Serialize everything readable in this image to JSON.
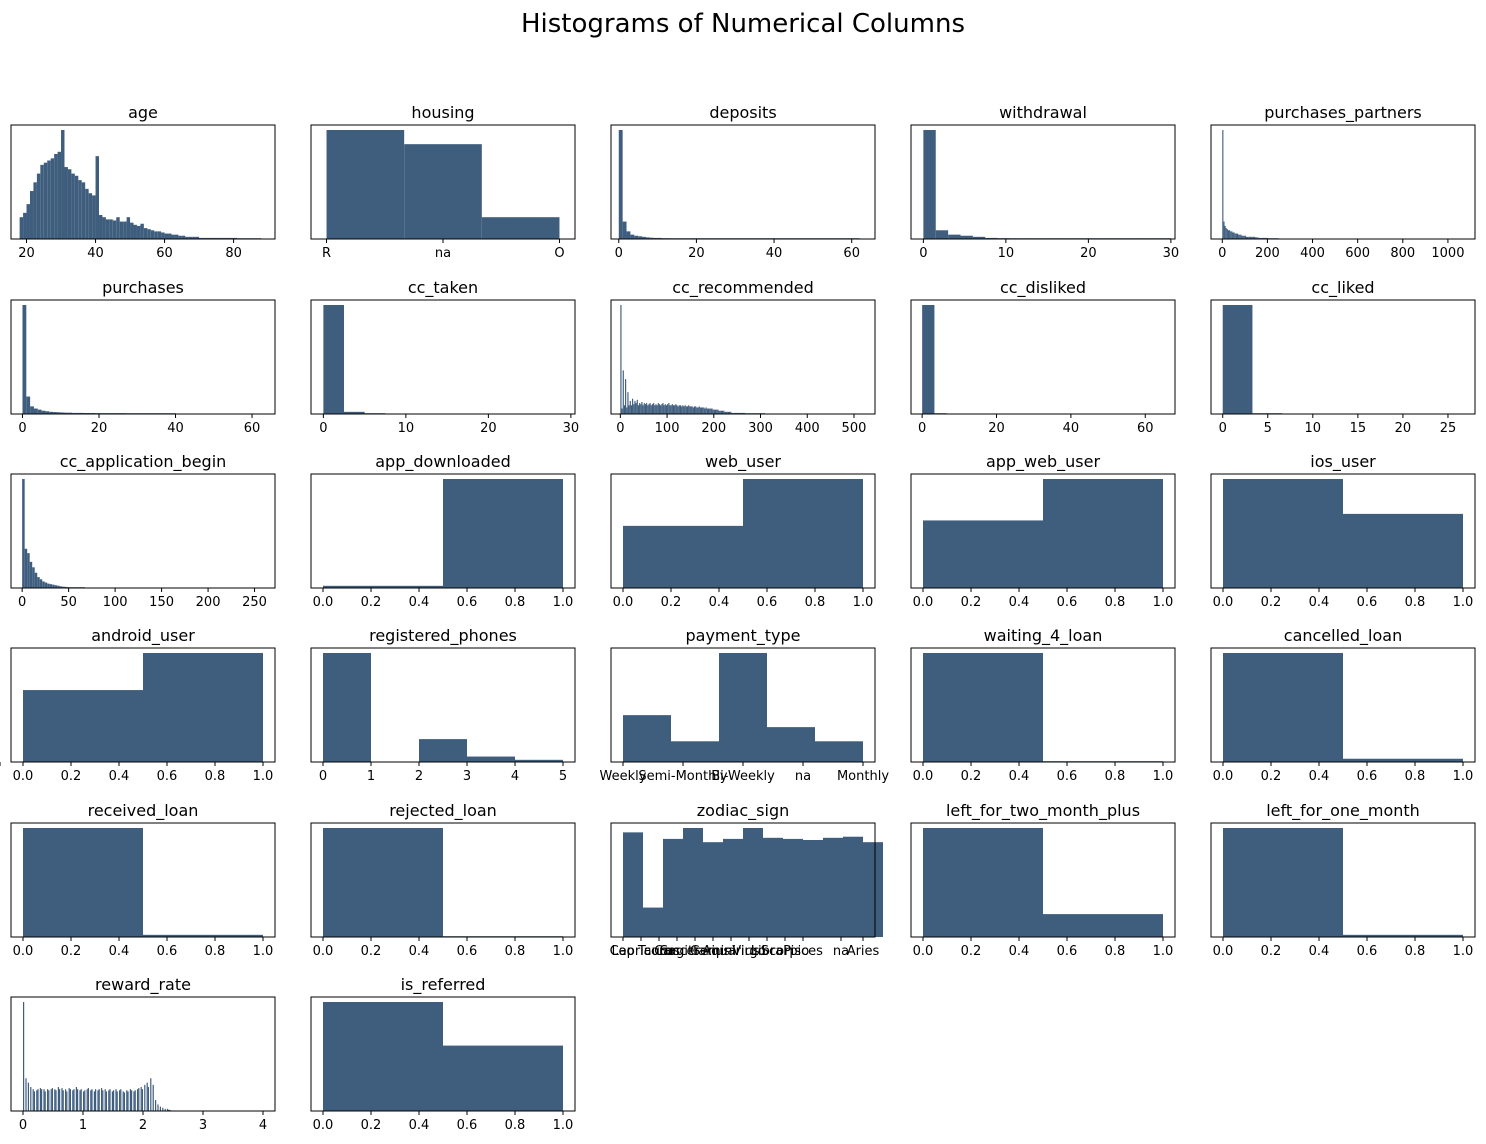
{
  "figure_title": "Histograms of Numerical Columns",
  "bar_color": "#3f5e7e",
  "chart_data": [
    {
      "type": "bar",
      "title": "age",
      "xlim": [
        15.5,
        92
      ],
      "xticks": [
        20,
        40,
        60,
        80
      ],
      "xtick_labels": [
        "20",
        "40",
        "60",
        "80"
      ],
      "bin_start": 18,
      "bin_width": 1.0,
      "values": [
        0.2,
        0.24,
        0.32,
        0.44,
        0.52,
        0.6,
        0.68,
        0.7,
        0.72,
        0.74,
        0.78,
        0.8,
        1.0,
        0.66,
        0.64,
        0.6,
        0.58,
        0.54,
        0.52,
        0.46,
        0.42,
        0.4,
        0.76,
        0.22,
        0.2,
        0.18,
        0.18,
        0.17,
        0.2,
        0.16,
        0.16,
        0.2,
        0.15,
        0.13,
        0.12,
        0.14,
        0.1,
        0.09,
        0.08,
        0.07,
        0.07,
        0.06,
        0.05,
        0.05,
        0.04,
        0.04,
        0.03,
        0.03,
        0.02,
        0.02,
        0.02,
        0.02,
        0.01,
        0.01,
        0.01,
        0.01,
        0.01,
        0.01,
        0.01,
        0.01,
        0.01,
        0.01,
        0.01,
        0.005,
        0.005,
        0.005,
        0.005,
        0.005,
        0.005,
        0.005
      ]
    },
    {
      "type": "bar",
      "title": "housing",
      "xlim": [
        -0.2,
        3.2
      ],
      "xticks": [
        0,
        1.5,
        3
      ],
      "xtick_labels": [
        "R",
        "na",
        "O"
      ],
      "bin_start": 0,
      "bin_width": 1.0,
      "values": [
        1.0,
        0.87,
        0.2
      ]
    },
    {
      "type": "bar",
      "title": "deposits",
      "xlim": [
        -2,
        66
      ],
      "xticks": [
        0,
        20,
        40,
        60
      ],
      "xtick_labels": [
        "0",
        "20",
        "40",
        "60"
      ],
      "bin_start": 0,
      "bin_width": 1.0,
      "values": [
        1.0,
        0.16,
        0.07,
        0.04,
        0.03,
        0.025,
        0.02,
        0.015,
        0.012,
        0.01,
        0.01,
        0.008,
        0.008,
        0.007,
        0.006,
        0.006,
        0.005,
        0.005,
        0.005,
        0.004,
        0.004,
        0.004,
        0.004,
        0.004,
        0.004,
        0.004,
        0.004,
        0.004,
        0.004,
        0.004,
        0.004,
        0.004,
        0.004,
        0.004,
        0.004,
        0.004,
        0.004,
        0.004,
        0.004,
        0.004,
        0.004,
        0.004,
        0.004,
        0.004,
        0.004,
        0.004,
        0.004,
        0.004,
        0.004,
        0.004,
        0.004,
        0.004,
        0.004,
        0.004,
        0.004,
        0.004,
        0.004,
        0.004,
        0.004,
        0.004,
        0.004,
        0.004
      ]
    },
    {
      "type": "bar",
      "title": "withdrawal",
      "xlim": [
        -1.5,
        30.5
      ],
      "xticks": [
        0,
        10,
        20,
        30
      ],
      "xtick_labels": [
        "0",
        "10",
        "20",
        "30"
      ],
      "bin_start": 0,
      "bin_width": 1.5,
      "values": [
        1.0,
        0.08,
        0.04,
        0.03,
        0.02,
        0.01,
        0.008,
        0.005,
        0.004,
        0.003,
        0.003,
        0.002,
        0.002,
        0.002,
        0.002,
        0.001,
        0.001,
        0.001,
        0.001,
        0.001
      ]
    },
    {
      "type": "bar",
      "title": "purchases_partners",
      "xlim": [
        -50,
        1120
      ],
      "xticks": [
        0,
        200,
        400,
        600,
        800,
        1000
      ],
      "xtick_labels": [
        "0",
        "200",
        "400",
        "600",
        "800",
        "1000"
      ],
      "bin_start": 0,
      "bin_width": 5,
      "values": [
        1.0,
        0.16,
        0.12,
        0.1,
        0.09,
        0.08,
        0.08,
        0.07,
        0.07,
        0.06,
        0.06,
        0.05,
        0.05,
        0.05,
        0.04,
        0.04,
        0.04,
        0.03,
        0.03,
        0.03,
        0.03,
        0.02,
        0.02,
        0.02,
        0.02,
        0.02,
        0.02,
        0.02,
        0.02,
        0.015,
        0.015,
        0.015,
        0.01,
        0.01,
        0.01,
        0.01,
        0.01,
        0.01,
        0.01,
        0.01,
        0.008,
        0.008,
        0.006,
        0.006,
        0.005,
        0.005,
        0.004,
        0.004,
        0.004,
        0.003
      ]
    },
    {
      "type": "bar",
      "title": "purchases",
      "xlim": [
        -3,
        66
      ],
      "xticks": [
        0,
        20,
        40,
        60
      ],
      "xtick_labels": [
        "0",
        "20",
        "40",
        "60"
      ],
      "bin_start": 0,
      "bin_width": 1.0,
      "values": [
        1.0,
        0.16,
        0.07,
        0.05,
        0.04,
        0.03,
        0.025,
        0.02,
        0.018,
        0.016,
        0.014,
        0.012,
        0.012,
        0.01,
        0.01,
        0.01,
        0.009,
        0.009,
        0.009,
        0.008,
        0.008,
        0.008,
        0.008,
        0.008,
        0.008,
        0.008,
        0.008,
        0.007,
        0.007,
        0.007,
        0.006,
        0.005,
        0.004,
        0.004,
        0.004,
        0.003,
        0.003,
        0.003,
        0.003,
        0.003
      ]
    },
    {
      "type": "bar",
      "title": "cc_taken",
      "xlim": [
        -1.5,
        30.5
      ],
      "xticks": [
        0,
        10,
        20,
        30
      ],
      "xtick_labels": [
        "0",
        "10",
        "20",
        "30"
      ],
      "bin_start": 0,
      "bin_width": 2.5,
      "values": [
        1.0,
        0.02,
        0.003
      ]
    },
    {
      "type": "bar",
      "title": "cc_recommended",
      "xlim": [
        -20,
        545
      ],
      "xticks": [
        0,
        100,
        200,
        300,
        400,
        500
      ],
      "xtick_labels": [
        "0",
        "100",
        "200",
        "300",
        "400",
        "500"
      ],
      "bin_start": 0,
      "bin_width": 2.5,
      "values": [
        1.0,
        0.05,
        0.4,
        0.08,
        0.32,
        0.06,
        0.2,
        0.08,
        0.12,
        0.08,
        0.14,
        0.09,
        0.12,
        0.1,
        0.13,
        0.08,
        0.1,
        0.09,
        0.11,
        0.08,
        0.1,
        0.09,
        0.1,
        0.08,
        0.09,
        0.1,
        0.08,
        0.09,
        0.1,
        0.08,
        0.09,
        0.08,
        0.1,
        0.09,
        0.08,
        0.09,
        0.1,
        0.08,
        0.09,
        0.08,
        0.09,
        0.1,
        0.08,
        0.08,
        0.09,
        0.08,
        0.08,
        0.09,
        0.08,
        0.07,
        0.08,
        0.08,
        0.07,
        0.08,
        0.07,
        0.08,
        0.07,
        0.07,
        0.08,
        0.07,
        0.07,
        0.07,
        0.06,
        0.07,
        0.07,
        0.06,
        0.06,
        0.07,
        0.06,
        0.06,
        0.06,
        0.06,
        0.05,
        0.06,
        0.05,
        0.05,
        0.05,
        0.05,
        0.05,
        0.04,
        0.04,
        0.04,
        0.04,
        0.04,
        0.03,
        0.03,
        0.03,
        0.03,
        0.03,
        0.02,
        0.02,
        0.02,
        0.02,
        0.02,
        0.02,
        0.01,
        0.01,
        0.01,
        0.01,
        0.01,
        0.01,
        0.01,
        0.01,
        0.01,
        0.01,
        0.01,
        0.01,
        0.005,
        0.005,
        0.005,
        0.005,
        0.005,
        0.005,
        0.005,
        0.005,
        0.005,
        0.005,
        0.005,
        0.005,
        0.005,
        0.005,
        0.005,
        0.005,
        0.005
      ]
    },
    {
      "type": "bar",
      "title": "cc_disliked",
      "xlim": [
        -3,
        68
      ],
      "xticks": [
        0,
        20,
        40,
        60
      ],
      "xtick_labels": [
        "0",
        "20",
        "40",
        "60"
      ],
      "bin_start": 0,
      "bin_width": 3.3,
      "values": [
        1.0,
        0.005
      ]
    },
    {
      "type": "bar",
      "title": "cc_liked",
      "xlim": [
        -1.3,
        28
      ],
      "xticks": [
        0,
        5,
        10,
        15,
        20,
        25
      ],
      "xtick_labels": [
        "0",
        "5",
        "10",
        "15",
        "20",
        "25"
      ],
      "bin_start": 0,
      "bin_width": 3.3,
      "values": [
        1.0,
        0.003
      ]
    },
    {
      "type": "bar",
      "title": "cc_application_begin",
      "xlim": [
        -12,
        272
      ],
      "xticks": [
        0,
        50,
        100,
        150,
        200,
        250
      ],
      "xtick_labels": [
        "0",
        "50",
        "100",
        "150",
        "200",
        "250"
      ],
      "bin_start": 0,
      "bin_width": 2.7,
      "values": [
        1.0,
        0.36,
        0.32,
        0.24,
        0.19,
        0.14,
        0.1,
        0.08,
        0.06,
        0.05,
        0.04,
        0.035,
        0.03,
        0.025,
        0.02,
        0.015,
        0.012,
        0.01,
        0.008,
        0.006,
        0.005,
        0.004,
        0.003,
        0.003,
        0.002
      ]
    },
    {
      "type": "bar",
      "title": "app_downloaded",
      "xlim": [
        -0.05,
        1.05
      ],
      "xticks": [
        0,
        0.2,
        0.4,
        0.6,
        0.8,
        1.0
      ],
      "xtick_labels": [
        "0.0",
        "0.2",
        "0.4",
        "0.6",
        "0.8",
        "1.0"
      ],
      "bin_start": 0,
      "bin_width": 0.5,
      "values": [
        0.02,
        1.0
      ]
    },
    {
      "type": "bar",
      "title": "web_user",
      "xlim": [
        -0.05,
        1.05
      ],
      "xticks": [
        0,
        0.2,
        0.4,
        0.6,
        0.8,
        1.0
      ],
      "xtick_labels": [
        "0.0",
        "0.2",
        "0.4",
        "0.6",
        "0.8",
        "1.0"
      ],
      "bin_start": 0,
      "bin_width": 0.5,
      "values": [
        0.57,
        1.0
      ]
    },
    {
      "type": "bar",
      "title": "app_web_user",
      "xlim": [
        -0.05,
        1.05
      ],
      "xticks": [
        0,
        0.2,
        0.4,
        0.6,
        0.8,
        1.0
      ],
      "xtick_labels": [
        "0.0",
        "0.2",
        "0.4",
        "0.6",
        "0.8",
        "1.0"
      ],
      "bin_start": 0,
      "bin_width": 0.5,
      "values": [
        0.62,
        1.0
      ]
    },
    {
      "type": "bar",
      "title": "ios_user",
      "xlim": [
        -0.05,
        1.05
      ],
      "xticks": [
        0,
        0.2,
        0.4,
        0.6,
        0.8,
        1.0
      ],
      "xtick_labels": [
        "0.0",
        "0.2",
        "0.4",
        "0.6",
        "0.8",
        "1.0"
      ],
      "bin_start": 0,
      "bin_width": 0.5,
      "values": [
        1.0,
        0.68
      ]
    },
    {
      "type": "bar",
      "title": "android_user",
      "xlim": [
        -0.05,
        1.05
      ],
      "xticks": [
        0,
        0.2,
        0.4,
        0.6,
        0.8,
        1.0
      ],
      "xtick_labels": [
        "0.0",
        "0.2",
        "0.4",
        "0.6",
        "0.8",
        "1.0"
      ],
      "bin_start": 0,
      "bin_width": 0.5,
      "values": [
        0.66,
        1.0
      ]
    },
    {
      "type": "bar",
      "title": "registered_phones",
      "xlim": [
        -0.25,
        5.25
      ],
      "xticks": [
        0,
        1,
        2,
        3,
        4,
        5
      ],
      "xtick_labels": [
        "0",
        "1",
        "2",
        "3",
        "4",
        "5"
      ],
      "bin_start": 0,
      "bin_width": 1.0,
      "values": [
        1.0,
        0.0,
        0.21,
        0.05,
        0.02
      ]
    },
    {
      "type": "bar",
      "title": "payment_type",
      "xlim": [
        -0.25,
        5.25
      ],
      "xticks": [
        0,
        1,
        2,
        3,
        4,
        5
      ],
      "xtick_labels": [
        "Weekly",
        "Semi-Monthly",
        "Bi-Weekly",
        "na",
        "Monthly"
      ],
      "xtick_positions": [
        0,
        1.25,
        2.5,
        3.75,
        5
      ],
      "bin_start": 0,
      "bin_width": 1.0,
      "values": [
        0.43,
        0.19,
        1.0,
        0.32,
        0.19
      ]
    },
    {
      "type": "bar",
      "title": "waiting_4_loan",
      "xlim": [
        -0.05,
        1.05
      ],
      "xticks": [
        0,
        0.2,
        0.4,
        0.6,
        0.8,
        1.0
      ],
      "xtick_labels": [
        "0.0",
        "0.2",
        "0.4",
        "0.6",
        "0.8",
        "1.0"
      ],
      "bin_start": 0,
      "bin_width": 0.5,
      "values": [
        1.0,
        0.002
      ]
    },
    {
      "type": "bar",
      "title": "cancelled_loan",
      "xlim": [
        -0.05,
        1.05
      ],
      "xticks": [
        0,
        0.2,
        0.4,
        0.6,
        0.8,
        1.0
      ],
      "xtick_labels": [
        "0.0",
        "0.2",
        "0.4",
        "0.6",
        "0.8",
        "1.0"
      ],
      "bin_start": 0,
      "bin_width": 0.5,
      "values": [
        1.0,
        0.03
      ]
    },
    {
      "type": "bar",
      "title": "received_loan",
      "xlim": [
        -0.05,
        1.05
      ],
      "xticks": [
        0,
        0.2,
        0.4,
        0.6,
        0.8,
        1.0
      ],
      "xtick_labels": [
        "0.0",
        "0.2",
        "0.4",
        "0.6",
        "0.8",
        "1.0"
      ],
      "bin_start": 0,
      "bin_width": 0.5,
      "values": [
        1.0,
        0.02
      ]
    },
    {
      "type": "bar",
      "title": "rejected_loan",
      "xlim": [
        -0.05,
        1.05
      ],
      "xticks": [
        0,
        0.2,
        0.4,
        0.6,
        0.8,
        1.0
      ],
      "xtick_labels": [
        "0.0",
        "0.2",
        "0.4",
        "0.6",
        "0.8",
        "1.0"
      ],
      "bin_start": 0,
      "bin_width": 0.5,
      "values": [
        1.0,
        0.005
      ]
    },
    {
      "type": "bar",
      "title": "zodiac_sign",
      "xlim": [
        -0.6,
        12.6
      ],
      "xticks": [
        0,
        1,
        2,
        3,
        4,
        5,
        6,
        7,
        8,
        9,
        10,
        11,
        12
      ],
      "xtick_labels": [
        "Leo",
        "Capricorn",
        "Taurus",
        "Cancer",
        "Sagittarius",
        "Gemini",
        "Aquarius",
        "Virgo",
        "Libra",
        "Scorpio",
        "Pisces",
        "na",
        "Aries"
      ],
      "xtick_positions": [
        0,
        0.9,
        1.8,
        2.7,
        3.6,
        4.5,
        5.4,
        6.3,
        7.2,
        8.1,
        9.0,
        10.9,
        12
      ],
      "bin_start": 0,
      "bin_width": 1.0,
      "values": [
        0.96,
        0.27,
        0.9,
        1.0,
        0.87,
        0.9,
        1.0,
        0.91,
        0.9,
        0.89,
        0.91,
        0.92,
        0.87
      ]
    },
    {
      "type": "bar",
      "title": "left_for_two_month_plus",
      "xlim": [
        -0.05,
        1.05
      ],
      "xticks": [
        0,
        0.2,
        0.4,
        0.6,
        0.8,
        1.0
      ],
      "xtick_labels": [
        "0.0",
        "0.2",
        "0.4",
        "0.6",
        "0.8",
        "1.0"
      ],
      "bin_start": 0,
      "bin_width": 0.5,
      "values": [
        1.0,
        0.21
      ]
    },
    {
      "type": "bar",
      "title": "left_for_one_month",
      "xlim": [
        -0.05,
        1.05
      ],
      "xticks": [
        0,
        0.2,
        0.4,
        0.6,
        0.8,
        1.0
      ],
      "xtick_labels": [
        "0.0",
        "0.2",
        "0.4",
        "0.6",
        "0.8",
        "1.0"
      ],
      "bin_start": 0,
      "bin_width": 0.5,
      "values": [
        1.0,
        0.02
      ]
    },
    {
      "type": "bar",
      "title": "reward_rate",
      "xlim": [
        -0.2,
        4.2
      ],
      "xticks": [
        0,
        1,
        2,
        3,
        4
      ],
      "xtick_labels": [
        "0",
        "1",
        "2",
        "3",
        "4"
      ],
      "bin_start": 0,
      "bin_width": 0.02,
      "values": [
        1.0,
        0.0,
        0.3,
        0.0,
        0.26,
        0.0,
        0.22,
        0.0,
        0.2,
        0.18,
        0.0,
        0.19,
        0.2,
        0.0,
        0.21,
        0.2,
        0.0,
        0.2,
        0.18,
        0.0,
        0.2,
        0.19,
        0.0,
        0.2,
        0.21,
        0.0,
        0.2,
        0.19,
        0.0,
        0.22,
        0.2,
        0.0,
        0.21,
        0.19,
        0.0,
        0.2,
        0.18,
        0.0,
        0.21,
        0.2,
        0.0,
        0.19,
        0.2,
        0.0,
        0.22,
        0.2,
        0.0,
        0.19,
        0.2,
        0.0,
        0.18,
        0.19,
        0.0,
        0.2,
        0.21,
        0.0,
        0.19,
        0.2,
        0.0,
        0.18,
        0.2,
        0.0,
        0.19,
        0.2,
        0.0,
        0.21,
        0.19,
        0.0,
        0.2,
        0.18,
        0.0,
        0.19,
        0.2,
        0.0,
        0.18,
        0.19,
        0.0,
        0.2,
        0.18,
        0.0,
        0.19,
        0.2,
        0.0,
        0.18,
        0.17,
        0.0,
        0.19,
        0.18,
        0.0,
        0.2,
        0.19,
        0.0,
        0.18,
        0.19,
        0.0,
        0.2,
        0.21,
        0.0,
        0.22,
        0.2,
        0.0,
        0.24,
        0.0,
        0.26,
        0.22,
        0.0,
        0.3,
        0.0,
        0.24,
        0.0,
        0.1,
        0.0,
        0.06,
        0.0,
        0.04,
        0.0,
        0.03,
        0.0,
        0.02,
        0.0,
        0.02,
        0.01,
        0.01
      ]
    },
    {
      "type": "bar",
      "title": "is_referred",
      "xlim": [
        -0.05,
        1.05
      ],
      "xticks": [
        0,
        0.2,
        0.4,
        0.6,
        0.8,
        1.0
      ],
      "xtick_labels": [
        "0.0",
        "0.2",
        "0.4",
        "0.6",
        "0.8",
        "1.0"
      ],
      "bin_start": 0,
      "bin_width": 0.5,
      "values": [
        1.0,
        0.6
      ]
    }
  ]
}
